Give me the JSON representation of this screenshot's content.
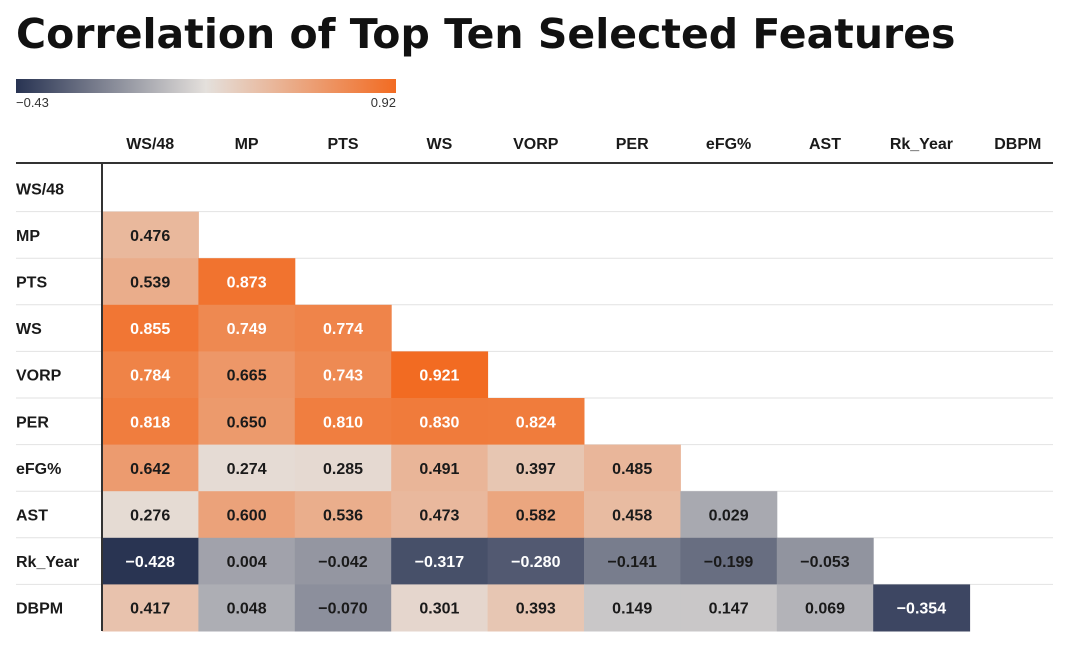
{
  "title": "Correlation of Top Ten Selected Features",
  "colors": {
    "low": "#283352",
    "mid": "#e4e0dc",
    "high": "#f26b22",
    "text_dark": "#1a1a1a",
    "text_light": "#ffffff"
  },
  "chart_data": {
    "type": "heatmap",
    "title": "Correlation of Top Ten Selected Features",
    "color_scale": {
      "min": -0.43,
      "max": 0.92,
      "min_label": "−0.43",
      "max_label": "0.92"
    },
    "columns": [
      "WS/48",
      "MP",
      "PTS",
      "WS",
      "VORP",
      "PER",
      "eFG%",
      "AST",
      "Rk_Year",
      "DBPM"
    ],
    "rows": [
      "WS/48",
      "MP",
      "PTS",
      "WS",
      "VORP",
      "PER",
      "eFG%",
      "AST",
      "Rk_Year",
      "DBPM"
    ],
    "values": [
      [],
      [
        0.476
      ],
      [
        0.539,
        0.873
      ],
      [
        0.855,
        0.749,
        0.774
      ],
      [
        0.784,
        0.665,
        0.743,
        0.921
      ],
      [
        0.818,
        0.65,
        0.81,
        0.83,
        0.824
      ],
      [
        0.642,
        0.274,
        0.285,
        0.491,
        0.397,
        0.485
      ],
      [
        0.276,
        0.6,
        0.536,
        0.473,
        0.582,
        0.458,
        0.029
      ],
      [
        -0.428,
        0.004,
        -0.042,
        -0.317,
        -0.28,
        -0.141,
        -0.199,
        -0.053
      ],
      [
        0.417,
        0.048,
        -0.07,
        0.301,
        0.393,
        0.149,
        0.147,
        0.069,
        -0.354
      ]
    ],
    "labels": [
      [],
      [
        "0.476"
      ],
      [
        "0.539",
        "0.873"
      ],
      [
        "0.855",
        "0.749",
        "0.774"
      ],
      [
        "0.784",
        "0.665",
        "0.743",
        "0.921"
      ],
      [
        "0.818",
        "0.650",
        "0.810",
        "0.830",
        "0.824"
      ],
      [
        "0.642",
        "0.274",
        "0.285",
        "0.491",
        "0.397",
        "0.485"
      ],
      [
        "0.276",
        "0.600",
        "0.536",
        "0.473",
        "0.582",
        "0.458",
        "0.029"
      ],
      [
        "−0.428",
        "0.004",
        "−0.042",
        "−0.317",
        "−0.280",
        "−0.141",
        "−0.199",
        "−0.053"
      ],
      [
        "0.417",
        "0.048",
        "−0.070",
        "0.301",
        "0.393",
        "0.149",
        "0.147",
        "0.069",
        "−0.354"
      ]
    ]
  }
}
